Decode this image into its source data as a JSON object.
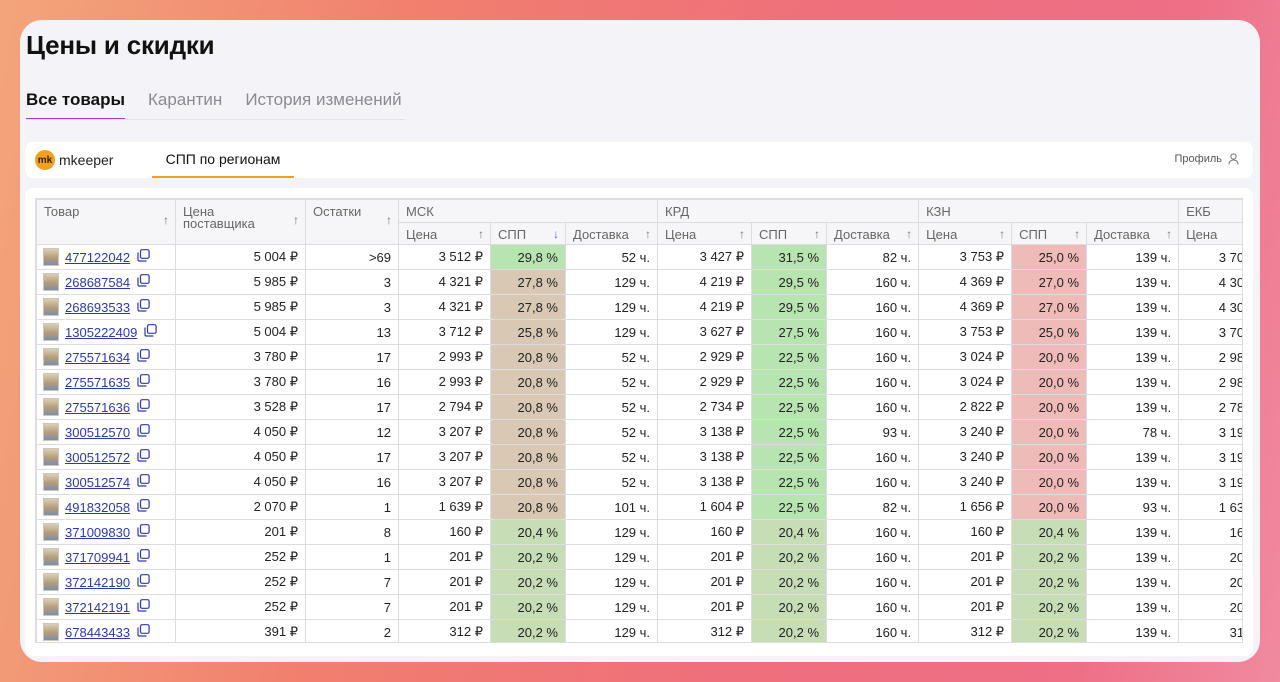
{
  "page": {
    "title": "Цены и скидки"
  },
  "tabs": [
    {
      "label": "Все товары",
      "active": true
    },
    {
      "label": "Карантин",
      "active": false
    },
    {
      "label": "История изменений",
      "active": false
    }
  ],
  "extension": {
    "logo_mark": "mk",
    "logo_text": "mkeeper",
    "tab": "СПП по регионам",
    "profile": "Профиль"
  },
  "table": {
    "headers": {
      "product": "Товар",
      "supplier_price": "Цена поставщика",
      "stock": "Остатки",
      "regions": [
        "МСК",
        "КРД",
        "КЗН",
        "ЕКБ"
      ],
      "price": "Цена",
      "spp": "СПП",
      "delivery": "Доставка"
    },
    "sort_icon": "↑",
    "sort_active_icon": "↓",
    "rows": [
      {
        "sku": "477122042",
        "supplier": "5 004 ₽",
        "stock": ">69",
        "msk_price": "3 512 ₽",
        "msk_spp": "29,8 %",
        "msk_spp_tone": "green",
        "msk_del": "52 ч.",
        "krd_price": "3 427 ₽",
        "krd_spp": "31,5 %",
        "krd_spp_tone": "green",
        "krd_del": "82 ч.",
        "kzn_price": "3 753 ₽",
        "kzn_spp": "25,0 %",
        "kzn_spp_tone": "red",
        "kzn_del": "139 ч.",
        "ekb_price": "3 70"
      },
      {
        "sku": "268687584",
        "supplier": "5 985 ₽",
        "stock": "3",
        "msk_price": "4 321 ₽",
        "msk_spp": "27,8 %",
        "msk_spp_tone": "beige",
        "msk_del": "129 ч.",
        "krd_price": "4 219 ₽",
        "krd_spp": "29,5 %",
        "krd_spp_tone": "green",
        "krd_del": "160 ч.",
        "kzn_price": "4 369 ₽",
        "kzn_spp": "27,0 %",
        "kzn_spp_tone": "red",
        "kzn_del": "139 ч.",
        "ekb_price": "4 30"
      },
      {
        "sku": "268693533",
        "supplier": "5 985 ₽",
        "stock": "3",
        "msk_price": "4 321 ₽",
        "msk_spp": "27,8 %",
        "msk_spp_tone": "beige",
        "msk_del": "129 ч.",
        "krd_price": "4 219 ₽",
        "krd_spp": "29,5 %",
        "krd_spp_tone": "green",
        "krd_del": "160 ч.",
        "kzn_price": "4 369 ₽",
        "kzn_spp": "27,0 %",
        "kzn_spp_tone": "red",
        "kzn_del": "139 ч.",
        "ekb_price": "4 30"
      },
      {
        "sku": "1305222409",
        "supplier": "5 004 ₽",
        "stock": "13",
        "msk_price": "3 712 ₽",
        "msk_spp": "25,8 %",
        "msk_spp_tone": "beige",
        "msk_del": "129 ч.",
        "krd_price": "3 627 ₽",
        "krd_spp": "27,5 %",
        "krd_spp_tone": "green",
        "krd_del": "160 ч.",
        "kzn_price": "3 753 ₽",
        "kzn_spp": "25,0 %",
        "kzn_spp_tone": "red",
        "kzn_del": "139 ч.",
        "ekb_price": "3 70"
      },
      {
        "sku": "275571634",
        "supplier": "3 780 ₽",
        "stock": "17",
        "msk_price": "2 993 ₽",
        "msk_spp": "20,8 %",
        "msk_spp_tone": "beige",
        "msk_del": "52 ч.",
        "krd_price": "2 929 ₽",
        "krd_spp": "22,5 %",
        "krd_spp_tone": "green",
        "krd_del": "160 ч.",
        "kzn_price": "3 024 ₽",
        "kzn_spp": "20,0 %",
        "kzn_spp_tone": "red",
        "kzn_del": "139 ч.",
        "ekb_price": "2 98"
      },
      {
        "sku": "275571635",
        "supplier": "3 780 ₽",
        "stock": "16",
        "msk_price": "2 993 ₽",
        "msk_spp": "20,8 %",
        "msk_spp_tone": "beige",
        "msk_del": "52 ч.",
        "krd_price": "2 929 ₽",
        "krd_spp": "22,5 %",
        "krd_spp_tone": "green",
        "krd_del": "160 ч.",
        "kzn_price": "3 024 ₽",
        "kzn_spp": "20,0 %",
        "kzn_spp_tone": "red",
        "kzn_del": "139 ч.",
        "ekb_price": "2 98"
      },
      {
        "sku": "275571636",
        "supplier": "3 528 ₽",
        "stock": "17",
        "msk_price": "2 794 ₽",
        "msk_spp": "20,8 %",
        "msk_spp_tone": "beige",
        "msk_del": "52 ч.",
        "krd_price": "2 734 ₽",
        "krd_spp": "22,5 %",
        "krd_spp_tone": "green",
        "krd_del": "160 ч.",
        "kzn_price": "2 822 ₽",
        "kzn_spp": "20,0 %",
        "kzn_spp_tone": "red",
        "kzn_del": "139 ч.",
        "ekb_price": "2 78"
      },
      {
        "sku": "300512570",
        "supplier": "4 050 ₽",
        "stock": "12",
        "msk_price": "3 207 ₽",
        "msk_spp": "20,8 %",
        "msk_spp_tone": "beige",
        "msk_del": "52 ч.",
        "krd_price": "3 138 ₽",
        "krd_spp": "22,5 %",
        "krd_spp_tone": "green",
        "krd_del": "93 ч.",
        "kzn_price": "3 240 ₽",
        "kzn_spp": "20,0 %",
        "kzn_spp_tone": "red",
        "kzn_del": "78 ч.",
        "ekb_price": "3 19"
      },
      {
        "sku": "300512572",
        "supplier": "4 050 ₽",
        "stock": "17",
        "msk_price": "3 207 ₽",
        "msk_spp": "20,8 %",
        "msk_spp_tone": "beige",
        "msk_del": "52 ч.",
        "krd_price": "3 138 ₽",
        "krd_spp": "22,5 %",
        "krd_spp_tone": "green",
        "krd_del": "160 ч.",
        "kzn_price": "3 240 ₽",
        "kzn_spp": "20,0 %",
        "kzn_spp_tone": "red",
        "kzn_del": "139 ч.",
        "ekb_price": "3 19"
      },
      {
        "sku": "300512574",
        "supplier": "4 050 ₽",
        "stock": "16",
        "msk_price": "3 207 ₽",
        "msk_spp": "20,8 %",
        "msk_spp_tone": "beige",
        "msk_del": "52 ч.",
        "krd_price": "3 138 ₽",
        "krd_spp": "22,5 %",
        "krd_spp_tone": "green",
        "krd_del": "160 ч.",
        "kzn_price": "3 240 ₽",
        "kzn_spp": "20,0 %",
        "kzn_spp_tone": "red",
        "kzn_del": "139 ч.",
        "ekb_price": "3 19"
      },
      {
        "sku": "491832058",
        "supplier": "2 070 ₽",
        "stock": "1",
        "msk_price": "1 639 ₽",
        "msk_spp": "20,8 %",
        "msk_spp_tone": "beige",
        "msk_del": "101 ч.",
        "krd_price": "1 604 ₽",
        "krd_spp": "22,5 %",
        "krd_spp_tone": "green",
        "krd_del": "82 ч.",
        "kzn_price": "1 656 ₽",
        "kzn_spp": "20,0 %",
        "kzn_spp_tone": "red",
        "kzn_del": "93 ч.",
        "ekb_price": "1 63"
      },
      {
        "sku": "371009830",
        "supplier": "201 ₽",
        "stock": "8",
        "msk_price": "160 ₽",
        "msk_spp": "20,4 %",
        "msk_spp_tone": "pale",
        "msk_del": "129 ч.",
        "krd_price": "160 ₽",
        "krd_spp": "20,4 %",
        "krd_spp_tone": "pale",
        "krd_del": "160 ч.",
        "kzn_price": "160 ₽",
        "kzn_spp": "20,4 %",
        "kzn_spp_tone": "pale",
        "kzn_del": "139 ч.",
        "ekb_price": "16"
      },
      {
        "sku": "371709941",
        "supplier": "252 ₽",
        "stock": "1",
        "msk_price": "201 ₽",
        "msk_spp": "20,2 %",
        "msk_spp_tone": "pale",
        "msk_del": "129 ч.",
        "krd_price": "201 ₽",
        "krd_spp": "20,2 %",
        "krd_spp_tone": "pale",
        "krd_del": "160 ч.",
        "kzn_price": "201 ₽",
        "kzn_spp": "20,2 %",
        "kzn_spp_tone": "pale",
        "kzn_del": "139 ч.",
        "ekb_price": "20"
      },
      {
        "sku": "372142190",
        "supplier": "252 ₽",
        "stock": "7",
        "msk_price": "201 ₽",
        "msk_spp": "20,2 %",
        "msk_spp_tone": "pale",
        "msk_del": "129 ч.",
        "krd_price": "201 ₽",
        "krd_spp": "20,2 %",
        "krd_spp_tone": "pale",
        "krd_del": "160 ч.",
        "kzn_price": "201 ₽",
        "kzn_spp": "20,2 %",
        "kzn_spp_tone": "pale",
        "kzn_del": "139 ч.",
        "ekb_price": "20"
      },
      {
        "sku": "372142191",
        "supplier": "252 ₽",
        "stock": "7",
        "msk_price": "201 ₽",
        "msk_spp": "20,2 %",
        "msk_spp_tone": "pale",
        "msk_del": "129 ч.",
        "krd_price": "201 ₽",
        "krd_spp": "20,2 %",
        "krd_spp_tone": "pale",
        "krd_del": "160 ч.",
        "kzn_price": "201 ₽",
        "kzn_spp": "20,2 %",
        "kzn_spp_tone": "pale",
        "kzn_del": "139 ч.",
        "ekb_price": "20"
      },
      {
        "sku": "678443433",
        "supplier": "391 ₽",
        "stock": "2",
        "msk_price": "312 ₽",
        "msk_spp": "20,2 %",
        "msk_spp_tone": "pale",
        "msk_del": "129 ч.",
        "krd_price": "312 ₽",
        "krd_spp": "20,2 %",
        "krd_spp_tone": "pale",
        "krd_del": "160 ч.",
        "kzn_price": "312 ₽",
        "kzn_spp": "20,2 %",
        "kzn_spp_tone": "pale",
        "kzn_del": "139 ч.",
        "ekb_price": "31"
      }
    ]
  }
}
